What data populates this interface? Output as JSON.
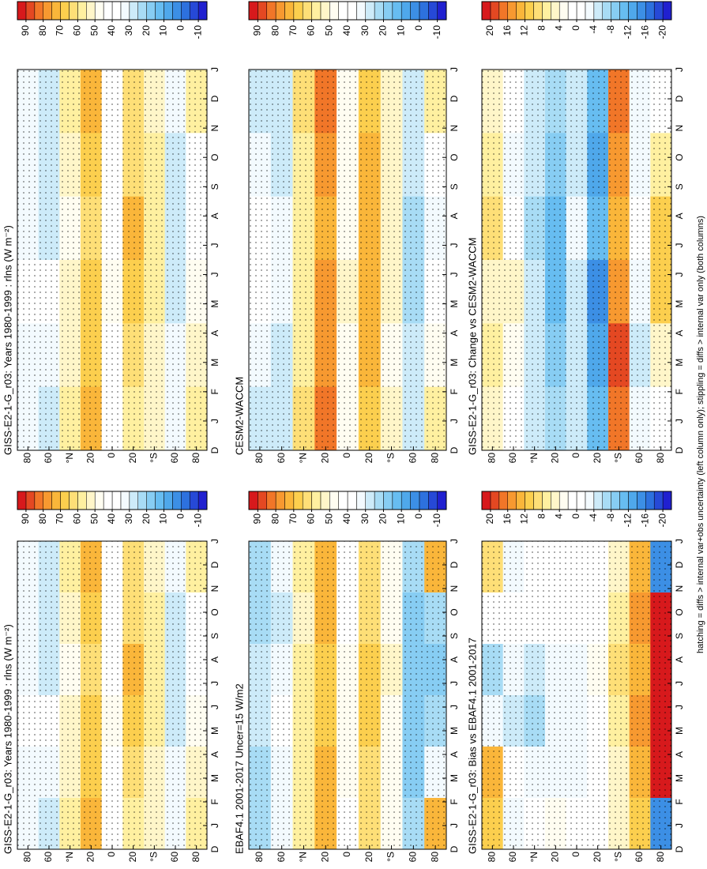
{
  "chart_data": [
    {
      "type": "heatmap",
      "title": "GISS-E2-1-G_r03: Years 1980-1999 : rlns (W m⁻²)",
      "categories": [
        "D",
        "J",
        "F",
        "M",
        "A",
        "M",
        "J",
        "J",
        "A",
        "S",
        "O",
        "N",
        "D",
        "J"
      ],
      "ylim": [
        -90,
        90
      ],
      "yticks": [
        80,
        60,
        {
          "value": 40,
          "label": "°N"
        },
        20,
        0,
        {
          "value": -20,
          "label": "20"
        },
        {
          "value": -40,
          "label": "°S"
        },
        {
          "value": -60,
          "label": "60"
        },
        {
          "value": -80,
          "label": "80"
        }
      ],
      "lat": [
        80,
        60,
        40,
        20,
        0,
        -20,
        -40,
        -60,
        -80
      ],
      "z": [
        [
          30,
          32,
          38,
          30,
          30,
          32
        ],
        [
          28,
          30,
          35,
          28,
          26,
          28
        ],
        [
          55,
          52,
          50,
          48,
          52,
          55
        ],
        [
          72,
          68,
          65,
          62,
          68,
          72
        ],
        [
          40,
          42,
          45,
          42,
          40,
          40
        ],
        [
          58,
          60,
          66,
          70,
          64,
          60
        ],
        [
          52,
          50,
          55,
          58,
          55,
          52
        ],
        [
          32,
          30,
          28,
          26,
          28,
          32
        ],
        [
          55,
          50,
          45,
          40,
          42,
          55
        ]
      ],
      "levels": [
        -15,
        -10,
        -5,
        0,
        5,
        10,
        15,
        20,
        25,
        30,
        35,
        40,
        45,
        50,
        55,
        60,
        65,
        70,
        75,
        80,
        85,
        90,
        95
      ],
      "cticks": [
        90,
        80,
        70,
        60,
        50,
        40,
        30,
        20,
        10,
        0,
        -10
      ],
      "cmap": [
        "#2020d0",
        "#2f7fe0",
        "#5cb8f0",
        "#a8dcf5",
        "#ffffff",
        "#ffffff",
        "#fff0a0",
        "#fcc940",
        "#f5862a",
        "#d7191c"
      ]
    },
    {
      "type": "heatmap",
      "title": "EBAF4.1 2001-2017 Uncer=15 W/m2",
      "categories": [
        "D",
        "J",
        "F",
        "M",
        "A",
        "M",
        "J",
        "J",
        "A",
        "S",
        "O",
        "N",
        "D",
        "J"
      ],
      "ylim": [
        -90,
        90
      ],
      "yticks": [
        80,
        60,
        {
          "value": 40,
          "label": "°N"
        },
        20,
        0,
        {
          "value": -20,
          "label": "20"
        },
        {
          "value": -40,
          "label": "°S"
        },
        {
          "value": -60,
          "label": "60"
        },
        {
          "value": -80,
          "label": "80"
        }
      ],
      "lat": [
        80,
        60,
        40,
        20,
        0,
        -20,
        -40,
        -60,
        -80
      ],
      "z": [
        [
          20,
          22,
          28,
          25,
          22,
          20
        ],
        [
          30,
          32,
          38,
          30,
          28,
          30
        ],
        [
          55,
          55,
          58,
          55,
          52,
          55
        ],
        [
          70,
          72,
          68,
          66,
          70,
          72
        ],
        [
          42,
          45,
          48,
          45,
          42,
          42
        ],
        [
          60,
          62,
          66,
          68,
          64,
          62
        ],
        [
          48,
          45,
          48,
          50,
          48,
          48
        ],
        [
          22,
          18,
          15,
          15,
          18,
          20
        ],
        [
          72,
          30,
          22,
          18,
          22,
          70
        ]
      ],
      "levels": [
        -15,
        -10,
        -5,
        0,
        5,
        10,
        15,
        20,
        25,
        30,
        35,
        40,
        45,
        50,
        55,
        60,
        65,
        70,
        75,
        80,
        85,
        90,
        95
      ],
      "cticks": [
        90,
        80,
        70,
        60,
        50,
        40,
        30,
        20,
        10,
        0,
        -10
      ],
      "cmap": [
        "#2020d0",
        "#2f7fe0",
        "#5cb8f0",
        "#a8dcf5",
        "#ffffff",
        "#ffffff",
        "#fff0a0",
        "#fcc940",
        "#f5862a",
        "#d7191c"
      ]
    },
    {
      "type": "heatmap",
      "title": "GISS-E2-1-G_r03: Bias vs EBAF4.1 2001-2017",
      "categories": [
        "D",
        "J",
        "F",
        "M",
        "A",
        "M",
        "J",
        "J",
        "A",
        "S",
        "O",
        "N",
        "D",
        "J"
      ],
      "ylim": [
        -90,
        90
      ],
      "yticks": [
        80,
        60,
        {
          "value": 40,
          "label": "°N"
        },
        20,
        0,
        {
          "value": -20,
          "label": "20"
        },
        {
          "value": -40,
          "label": "°S"
        },
        {
          "value": -60,
          "label": "60"
        },
        {
          "value": -80,
          "label": "80"
        }
      ],
      "lat": [
        80,
        60,
        40,
        20,
        0,
        -20,
        -40,
        -60,
        -80
      ],
      "z": [
        [
          10,
          12,
          -4,
          -8,
          0,
          8
        ],
        [
          -4,
          -2,
          -6,
          -4,
          -2,
          -4
        ],
        [
          0,
          -4,
          -8,
          -6,
          -2,
          0
        ],
        [
          2,
          -4,
          -3,
          -4,
          -2,
          0
        ],
        [
          -2,
          -4,
          -4,
          -3,
          -2,
          -2
        ],
        [
          -2,
          -2,
          0,
          2,
          0,
          -2
        ],
        [
          4,
          5,
          6,
          8,
          6,
          4
        ],
        [
          10,
          12,
          14,
          12,
          14,
          12
        ],
        [
          -16,
          20,
          22,
          22,
          20,
          -16
        ]
      ],
      "levels": [
        -22,
        -20,
        -18,
        -16,
        -14,
        -12,
        -10,
        -8,
        -6,
        -4,
        -2,
        0,
        2,
        4,
        6,
        8,
        10,
        12,
        14,
        16,
        18,
        20,
        22
      ],
      "cticks": [
        20,
        16,
        12,
        8,
        4,
        0,
        -4,
        -8,
        -12,
        -16,
        -20
      ],
      "cmap": [
        "#2020d0",
        "#2f7fe0",
        "#5cb8f0",
        "#a8dcf5",
        "#ffffff",
        "#ffffff",
        "#fff0a0",
        "#fcc940",
        "#f5862a",
        "#d7191c"
      ]
    },
    {
      "type": "heatmap",
      "title": "GISS-E2-1-G_r03: Years 1980-1999 : rlns (W m⁻²)",
      "categories": [
        "D",
        "J",
        "F",
        "M",
        "A",
        "M",
        "J",
        "J",
        "A",
        "S",
        "O",
        "N",
        "D",
        "J"
      ],
      "ylim": [
        -90,
        90
      ],
      "yticks": [
        80,
        60,
        {
          "value": 40,
          "label": "°N"
        },
        20,
        0,
        {
          "value": -20,
          "label": "20"
        },
        {
          "value": -40,
          "label": "°S"
        },
        {
          "value": -60,
          "label": "60"
        },
        {
          "value": -80,
          "label": "80"
        }
      ],
      "lat": [
        80,
        60,
        40,
        20,
        0,
        -20,
        -40,
        -60,
        -80
      ],
      "z": [
        [
          30,
          32,
          38,
          30,
          30,
          32
        ],
        [
          28,
          30,
          35,
          28,
          26,
          28
        ],
        [
          55,
          52,
          50,
          48,
          52,
          55
        ],
        [
          72,
          68,
          65,
          62,
          68,
          72
        ],
        [
          40,
          42,
          45,
          42,
          40,
          40
        ],
        [
          58,
          60,
          66,
          70,
          64,
          60
        ],
        [
          52,
          50,
          55,
          58,
          55,
          52
        ],
        [
          32,
          30,
          28,
          26,
          28,
          32
        ],
        [
          55,
          50,
          45,
          40,
          42,
          55
        ]
      ],
      "levels": [
        -15,
        -10,
        -5,
        0,
        5,
        10,
        15,
        20,
        25,
        30,
        35,
        40,
        45,
        50,
        55,
        60,
        65,
        70,
        75,
        80,
        85,
        90,
        95
      ],
      "cticks": [
        90,
        80,
        70,
        60,
        50,
        40,
        30,
        20,
        10,
        0,
        -10
      ],
      "cmap": [
        "#2020d0",
        "#2f7fe0",
        "#5cb8f0",
        "#a8dcf5",
        "#ffffff",
        "#ffffff",
        "#fff0a0",
        "#fcc940",
        "#f5862a",
        "#d7191c"
      ]
    },
    {
      "type": "heatmap",
      "title": "CESM2-WACCM",
      "categories": [
        "D",
        "J",
        "F",
        "M",
        "A",
        "M",
        "J",
        "J",
        "A",
        "S",
        "O",
        "N",
        "D",
        "J"
      ],
      "ylim": [
        -90,
        90
      ],
      "yticks": [
        80,
        60,
        {
          "value": 40,
          "label": "°N"
        },
        20,
        0,
        {
          "value": -20,
          "label": "20"
        },
        {
          "value": -40,
          "label": "°S"
        },
        {
          "value": -60,
          "label": "60"
        },
        {
          "value": -80,
          "label": "80"
        }
      ],
      "lat": [
        80,
        60,
        40,
        20,
        0,
        -20,
        -40,
        -60,
        -80
      ],
      "z": [
        [
          28,
          30,
          38,
          35,
          32,
          28
        ],
        [
          28,
          26,
          32,
          30,
          26,
          28
        ],
        [
          60,
          58,
          56,
          55,
          58,
          60
        ],
        [
          80,
          78,
          75,
          74,
          78,
          80
        ],
        [
          45,
          48,
          50,
          46,
          45,
          45
        ],
        [
          68,
          70,
          72,
          74,
          70,
          68
        ],
        [
          50,
          48,
          50,
          52,
          50,
          50
        ],
        [
          28,
          25,
          24,
          22,
          25,
          28
        ],
        [
          55,
          45,
          35,
          30,
          35,
          55
        ]
      ],
      "levels": [
        -15,
        -10,
        -5,
        0,
        5,
        10,
        15,
        20,
        25,
        30,
        35,
        40,
        45,
        50,
        55,
        60,
        65,
        70,
        75,
        80,
        85,
        90,
        95
      ],
      "cticks": [
        90,
        80,
        70,
        60,
        50,
        40,
        30,
        20,
        10,
        0,
        -10
      ],
      "cmap": [
        "#2020d0",
        "#2f7fe0",
        "#5cb8f0",
        "#a8dcf5",
        "#ffffff",
        "#ffffff",
        "#fff0a0",
        "#fcc940",
        "#f5862a",
        "#d7191c"
      ]
    },
    {
      "type": "heatmap",
      "title": "GISS-E2-1-G_r03: Change vs CESM2-WACCM",
      "categories": [
        "D",
        "J",
        "F",
        "M",
        "A",
        "M",
        "J",
        "J",
        "A",
        "S",
        "O",
        "N",
        "D",
        "J"
      ],
      "ylim": [
        -90,
        90
      ],
      "yticks": [
        80,
        60,
        {
          "value": 40,
          "label": "°N"
        },
        20,
        0,
        {
          "value": -20,
          "label": "20"
        },
        {
          "value": -40,
          "label": "°S"
        },
        {
          "value": -60,
          "label": "60"
        },
        {
          "value": -80,
          "label": "80"
        }
      ],
      "lat": [
        80,
        60,
        40,
        20,
        0,
        -20,
        -40,
        -60,
        -80
      ],
      "z": [
        [
          4,
          6,
          4,
          8,
          6,
          4
        ],
        [
          -2,
          2,
          4,
          -2,
          -4,
          -2
        ],
        [
          -5,
          -6,
          -6,
          -7,
          -6,
          -5
        ],
        [
          -8,
          -10,
          -12,
          -12,
          -10,
          -8
        ],
        [
          -5,
          -6,
          -5,
          -4,
          -5,
          -5
        ],
        [
          -12,
          -14,
          -16,
          -12,
          -14,
          -12
        ],
        [
          16,
          18,
          14,
          12,
          14,
          16
        ],
        [
          -4,
          -6,
          -4,
          -2,
          -4,
          -4
        ],
        [
          0,
          5,
          10,
          10,
          7,
          0
        ]
      ],
      "levels": [
        -22,
        -20,
        -18,
        -16,
        -14,
        -12,
        -10,
        -8,
        -6,
        -4,
        -2,
        0,
        2,
        4,
        6,
        8,
        10,
        12,
        14,
        16,
        18,
        20,
        22
      ],
      "cticks": [
        20,
        16,
        12,
        8,
        4,
        0,
        -4,
        -8,
        -12,
        -16,
        -20
      ],
      "cmap": [
        "#2020d0",
        "#2f7fe0",
        "#5cb8f0",
        "#a8dcf5",
        "#ffffff",
        "#ffffff",
        "#fff0a0",
        "#fcc940",
        "#f5862a",
        "#d7191c"
      ]
    }
  ],
  "footnote": "hatching = diffs > internal var+obs uncertainty (left column only); stippling = diffs > internal var only (both columns)"
}
